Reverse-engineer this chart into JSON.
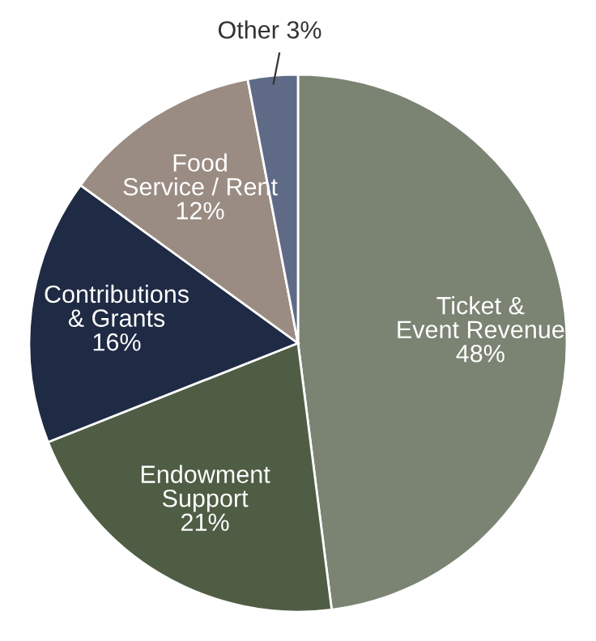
{
  "chart_data": {
    "type": "pie",
    "categories": [
      "Ticket &\nEvent Revenue",
      "Endowment\nSupport",
      "Contributions\n& Grants",
      "Food\nService / Rent",
      "Other"
    ],
    "values": [
      48,
      21,
      16,
      12,
      3
    ],
    "value_labels": [
      "48%",
      "21%",
      "16%",
      "12%",
      "3%"
    ],
    "colors": [
      "#7b8373",
      "#4f5d45",
      "#1f2a44",
      "#9a8c82",
      "#5f6b86"
    ]
  }
}
